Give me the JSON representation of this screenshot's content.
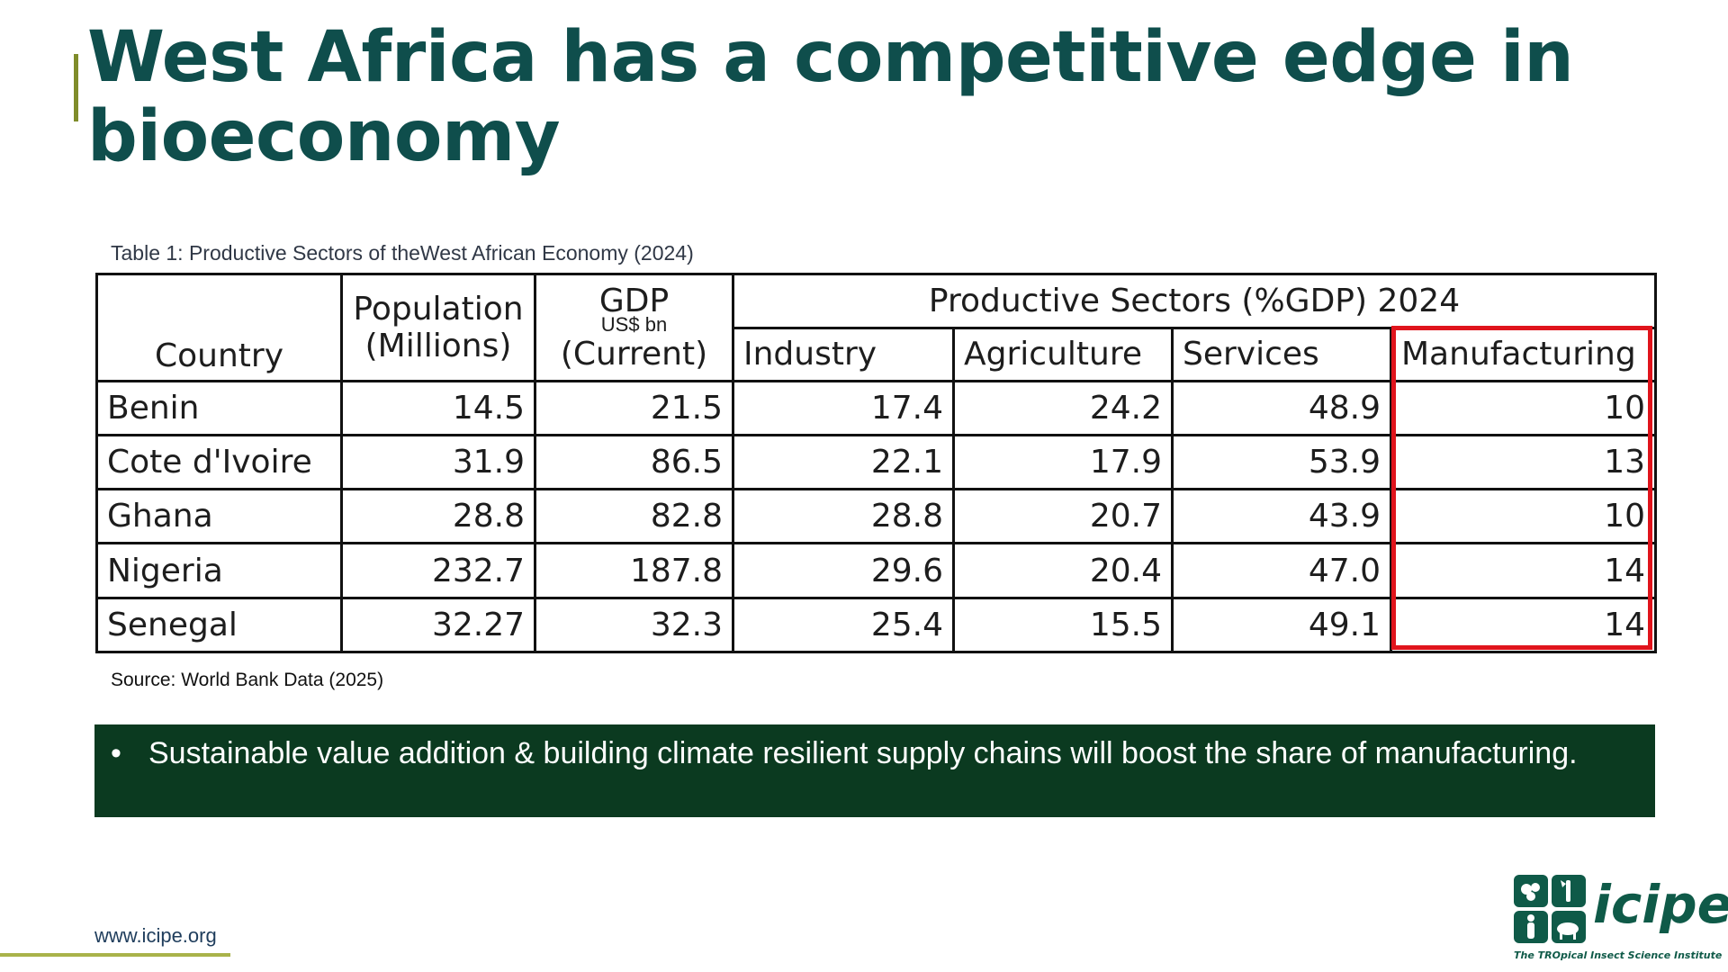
{
  "title": "West Africa has a competitive edge in bioeconomy",
  "table_caption": "Table 1: Productive Sectors of theWest African Economy (2024)",
  "table": {
    "headers": {
      "country": "Country",
      "population_line1": "Population",
      "population_line2": "(Millions)",
      "gdp_line1": "GDP",
      "gdp_unit": "US$ bn",
      "gdp_line2": "(Current)",
      "sectors_group": "Productive Sectors (%GDP) 2024",
      "industry": "Industry",
      "agriculture": "Agriculture",
      "services": "Services",
      "manufacturing": "Manufacturing"
    },
    "rows": [
      {
        "country": "Benin",
        "population": "14.5",
        "gdp": "21.5",
        "industry": "17.4",
        "agriculture": "24.2",
        "services": "48.9",
        "manufacturing": "10"
      },
      {
        "country": "Cote d'Ivoire",
        "population": "31.9",
        "gdp": "86.5",
        "industry": "22.1",
        "agriculture": "17.9",
        "services": "53.9",
        "manufacturing": "13"
      },
      {
        "country": "Ghana",
        "population": "28.8",
        "gdp": "82.8",
        "industry": "28.8",
        "agriculture": "20.7",
        "services": "43.9",
        "manufacturing": "10"
      },
      {
        "country": "Nigeria",
        "population": "232.7",
        "gdp": "187.8",
        "industry": "29.6",
        "agriculture": "20.4",
        "services": "47.0",
        "manufacturing": "14"
      },
      {
        "country": "Senegal",
        "population": "32.27",
        "gdp": "32.3",
        "industry": "25.4",
        "agriculture": "15.5",
        "services": "49.1",
        "manufacturing": "14"
      }
    ]
  },
  "source": "Source: World Bank Data (2025)",
  "callout": {
    "bullet": "•",
    "text": "Sustainable value addition & building climate resilient supply chains will boost the share of manufacturing."
  },
  "footer": {
    "url": "www.icipe.org"
  },
  "logo": {
    "word": "icipe",
    "tagline": "The TROpical Insect Science Institute"
  },
  "colors": {
    "title": "#0f4e4c",
    "accent": "#7f8c2a",
    "highlight": "#e0141c",
    "callout_bg": "#0b3a20"
  }
}
